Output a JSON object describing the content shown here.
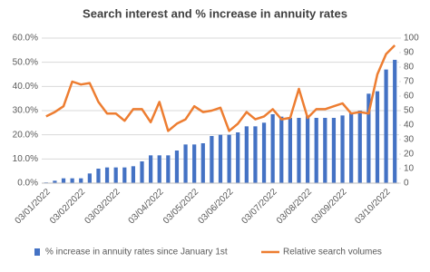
{
  "chart_data": {
    "type": "bar-line",
    "title": "Search interest and % increase in annuity rates",
    "categories": [
      "03/01/2022",
      null,
      null,
      null,
      "03/02/2022",
      null,
      null,
      null,
      "03/03/2022",
      null,
      null,
      null,
      null,
      "03/04/2022",
      null,
      null,
      null,
      "03/05/2022",
      null,
      null,
      null,
      "03/06/2022",
      null,
      null,
      null,
      null,
      "03/07/2022",
      null,
      null,
      null,
      "03/08/2022",
      null,
      null,
      null,
      "03/09/2022",
      null,
      null,
      null,
      null,
      "03/10/2022",
      null
    ],
    "series": [
      {
        "name": "% increase in annuity rates since January 1st",
        "type": "bar",
        "color": "#4472c4",
        "axis": "y",
        "values": [
          0.3,
          1,
          2,
          2,
          2,
          4,
          6,
          6.5,
          6.5,
          6.5,
          7,
          9,
          11.5,
          11.5,
          11.5,
          13.5,
          16,
          16,
          16.5,
          19.5,
          20,
          20,
          21,
          23.5,
          23.5,
          25,
          28.5,
          27.5,
          27,
          27,
          28,
          27,
          27,
          27,
          28,
          29,
          30,
          37,
          38,
          47,
          51
        ]
      },
      {
        "name": "Relative search volumes",
        "type": "line",
        "color": "#ed7d31",
        "axis": "y2",
        "values": [
          46,
          49,
          53,
          70,
          68,
          69,
          56,
          48,
          48,
          43,
          51,
          51,
          42,
          56,
          36,
          41,
          44,
          53,
          49,
          50,
          52,
          36,
          41,
          49,
          44,
          46,
          51,
          44,
          45,
          65,
          45,
          51,
          51,
          53,
          55,
          48,
          49,
          48,
          75,
          89,
          95
        ]
      }
    ],
    "ylim": [
      0,
      60
    ],
    "yticks": [
      {
        "value": 0,
        "label": "0.0%"
      },
      {
        "value": 10,
        "label": "10.0%"
      },
      {
        "value": 20,
        "label": "20.0%"
      },
      {
        "value": 30,
        "label": "30.0%"
      },
      {
        "value": 40,
        "label": "40.0%"
      },
      {
        "value": 50,
        "label": "50.0%"
      },
      {
        "value": 60,
        "label": "60.0%"
      }
    ],
    "y2lim": [
      0,
      100
    ],
    "y2ticks": [
      0,
      10,
      20,
      30,
      40,
      50,
      60,
      70,
      80,
      90,
      100
    ],
    "grid": true
  }
}
